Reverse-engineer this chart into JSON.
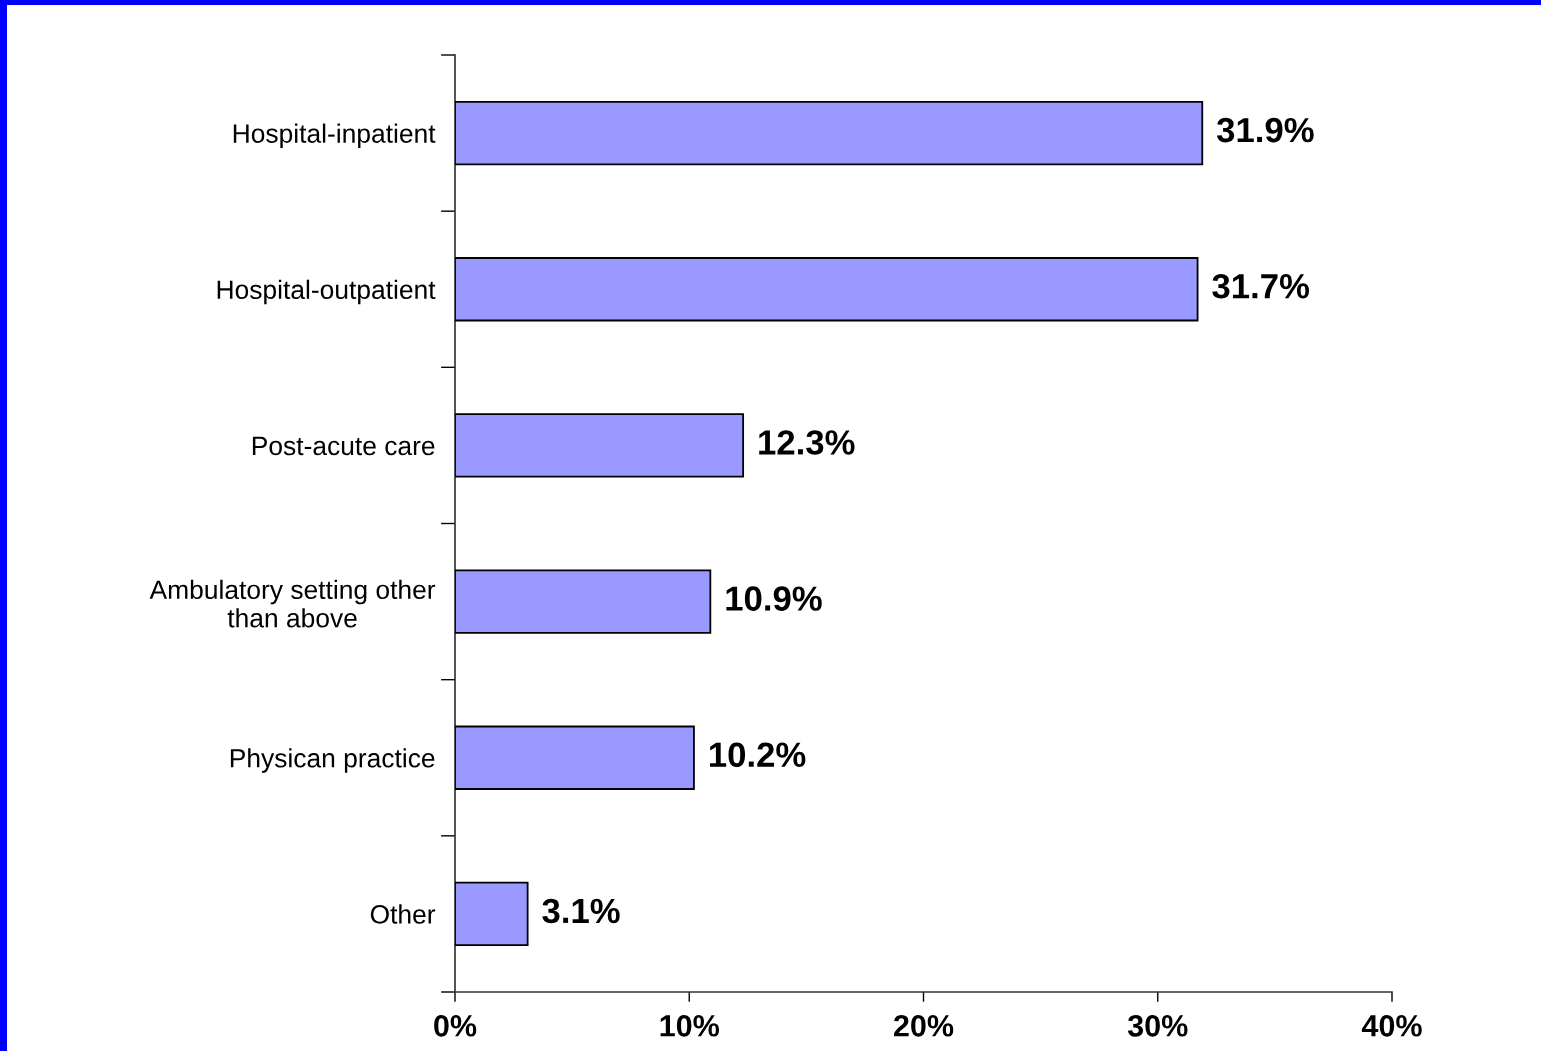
{
  "chart_data": {
    "type": "bar",
    "orientation": "horizontal",
    "categories": [
      "Hospital-inpatient",
      "Hospital-outpatient",
      "Post-acute care",
      "Ambulatory setting other\nthan above",
      "Physican practice",
      "Other"
    ],
    "values": [
      31.9,
      31.7,
      12.3,
      10.9,
      10.2,
      3.1
    ],
    "color": "#9999ff",
    "value_labels": [
      "31.9%",
      "31.7%",
      "12.3%",
      "10.9%",
      "10.2%",
      "3.1%"
    ],
    "xlim": [
      0,
      40
    ],
    "xticks": [
      {
        "value": 0,
        "label": "0%"
      },
      {
        "value": 10,
        "label": "10%"
      },
      {
        "value": 20,
        "label": "20%"
      },
      {
        "value": 30,
        "label": "30%"
      },
      {
        "value": 40,
        "label": "40%"
      }
    ],
    "grid": false
  }
}
